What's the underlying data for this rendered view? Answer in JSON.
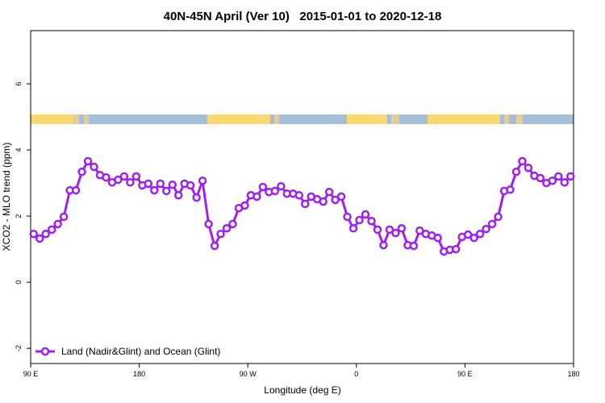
{
  "chart_data": {
    "type": "line",
    "title": "40N-45N April (Ver 10)   2015-01-01 to 2020-12-18",
    "x_label": "Longitude (deg E)",
    "y_label": "XCO2 - MLO trend (ppm)",
    "xlim": [
      90,
      540
    ],
    "ylim": [
      -2.46,
      7.61
    ],
    "xticks": [
      {
        "value": 90,
        "label": "90 E"
      },
      180,
      {
        "value": 270,
        "label": "90 W"
      },
      {
        "value": 360,
        "label": "0"
      },
      {
        "value": 450,
        "label": "90 E"
      },
      {
        "value": 540,
        "label": "180"
      }
    ],
    "yticks": [
      -2,
      0,
      2,
      4,
      6
    ],
    "legend": "bottomleft",
    "x": [
      92.5,
      97.5,
      102.5,
      107.5,
      112.5,
      117.5,
      122.5,
      127.5,
      132.5,
      137.5,
      142.5,
      147.5,
      152.5,
      157.5,
      162.5,
      167.5,
      172.5,
      177.5,
      182.5,
      187.5,
      192.5,
      197.5,
      202.5,
      207.5,
      212.5,
      217.5,
      222.5,
      227.5,
      232.5,
      237.5,
      242.5,
      247.5,
      252.5,
      257.5,
      262.5,
      267.5,
      272.5,
      277.5,
      282.5,
      287.5,
      292.5,
      297.5,
      302.5,
      307.5,
      312.5,
      317.5,
      322.5,
      327.5,
      332.5,
      337.5,
      342.5,
      347.5,
      352.5,
      357.5,
      362.5,
      367.5,
      372.5,
      377.5,
      382.5,
      387.5,
      392.5,
      397.5,
      402.5,
      407.5,
      412.5,
      417.5,
      422.5,
      427.5,
      432.5,
      437.5,
      442.5,
      447.5,
      452.5,
      457.5,
      462.5,
      467.5,
      472.5,
      477.5,
      482.5,
      487.5,
      492.5,
      497.5,
      502.5,
      507.5,
      512.5,
      517.5,
      522.5,
      527.5,
      532.5,
      537.5
    ],
    "series": [
      {
        "name": "Land (Nadir&Glint) and Ocean (Glint)",
        "color": "#a020f0",
        "values": [
          1.46,
          1.32,
          1.46,
          1.59,
          1.76,
          1.98,
          2.78,
          2.78,
          3.34,
          3.66,
          3.49,
          3.24,
          3.17,
          3.02,
          3.1,
          3.2,
          3.02,
          3.2,
          2.93,
          2.98,
          2.78,
          2.98,
          2.76,
          2.95,
          2.63,
          2.98,
          2.93,
          2.56,
          3.07,
          1.76,
          1.1,
          1.46,
          1.63,
          1.76,
          2.24,
          2.32,
          2.63,
          2.59,
          2.88,
          2.73,
          2.76,
          2.9,
          2.68,
          2.68,
          2.63,
          2.37,
          2.59,
          2.51,
          2.44,
          2.73,
          2.49,
          2.59,
          1.98,
          1.63,
          1.88,
          2.05,
          1.85,
          1.59,
          1.12,
          1.59,
          1.49,
          1.63,
          1.12,
          1.1,
          1.56,
          1.46,
          1.41,
          1.34,
          0.93,
          0.98,
          1.0,
          1.37,
          1.44,
          1.34,
          1.46,
          1.61,
          1.76,
          1.98,
          2.76,
          2.8,
          3.34,
          3.66,
          3.46,
          3.22,
          3.15,
          3.0,
          3.07,
          3.2,
          3.02,
          3.2
        ]
      }
    ]
  }
}
